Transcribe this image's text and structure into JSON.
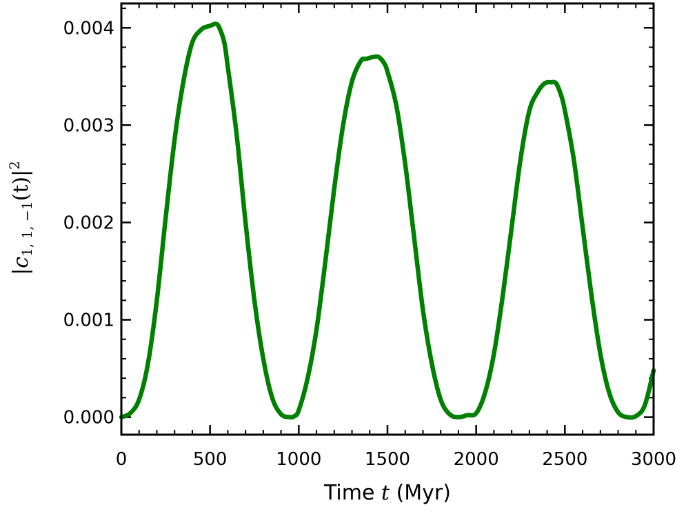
{
  "chart_data": {
    "type": "line",
    "title": "",
    "xlabel": {
      "prefix": "Time ",
      "var": "t",
      "suffix": " (Myr)"
    },
    "ylabel": {
      "bar_open": "|",
      "var": "c",
      "sub": "1, 1, −1",
      "args": "(t)",
      "bar_close": "|",
      "sup": "2"
    },
    "xlim": [
      0,
      3000
    ],
    "ylim": [
      -0.00018,
      0.00425
    ],
    "xticks": [
      0,
      500,
      1000,
      1500,
      2000,
      2500,
      3000
    ],
    "xtick_labels": [
      "0",
      "500",
      "1000",
      "1500",
      "2000",
      "2500",
      "3000"
    ],
    "yticks": [
      0.0,
      0.001,
      0.002,
      0.003,
      0.004
    ],
    "ytick_labels": [
      "0.000",
      "0.001",
      "0.002",
      "0.003",
      "0.004"
    ],
    "grid": false,
    "series": [
      {
        "color": "#008000",
        "x": [
          0,
          50,
          100,
          150,
          200,
          250,
          300,
          350,
          400,
          450,
          480,
          500,
          530,
          550,
          580,
          600,
          650,
          700,
          750,
          800,
          850,
          900,
          950,
          975,
          1000,
          1050,
          1100,
          1150,
          1200,
          1250,
          1300,
          1350,
          1380,
          1420,
          1450,
          1480,
          1500,
          1550,
          1600,
          1650,
          1700,
          1750,
          1800,
          1850,
          1900,
          1950,
          2000,
          2050,
          2100,
          2150,
          2200,
          2250,
          2300,
          2350,
          2380,
          2400,
          2420,
          2450,
          2480,
          2500,
          2550,
          2600,
          2650,
          2700,
          2750,
          2800,
          2850,
          2900,
          2950,
          3000
        ],
        "y": [
          0.0,
          4e-05,
          0.00018,
          0.00055,
          0.0012,
          0.00205,
          0.00285,
          0.00345,
          0.00385,
          0.00398,
          0.00401,
          0.00402,
          0.00404,
          0.00401,
          0.00385,
          0.0036,
          0.0029,
          0.002,
          0.0012,
          0.0006,
          0.0002,
          3e-05,
          0.0,
          1e-05,
          7e-05,
          0.0004,
          0.0009,
          0.0016,
          0.00235,
          0.003,
          0.00345,
          0.00366,
          0.00368,
          0.0037,
          0.0037,
          0.00364,
          0.00355,
          0.0032,
          0.0026,
          0.00185,
          0.0011,
          0.00055,
          0.00018,
          3e-05,
          0.0,
          2e-05,
          4e-05,
          0.00025,
          0.00065,
          0.00125,
          0.00195,
          0.00265,
          0.00315,
          0.00335,
          0.00342,
          0.00344,
          0.00344,
          0.00343,
          0.0033,
          0.00315,
          0.00265,
          0.00195,
          0.00125,
          0.00065,
          0.00025,
          5e-05,
          0.0,
          1e-05,
          0.00012,
          0.00048
        ]
      }
    ]
  }
}
